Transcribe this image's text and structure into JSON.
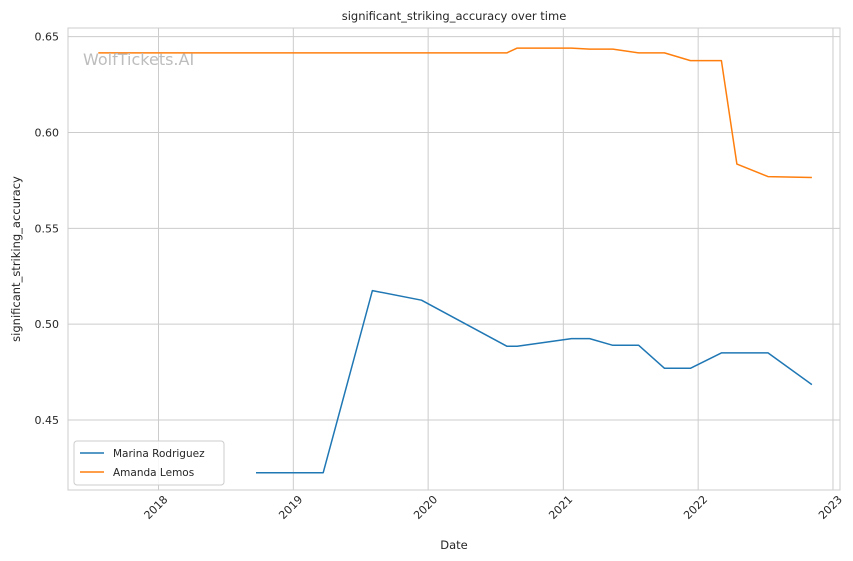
{
  "chart_data": {
    "type": "line",
    "title": "significant_striking_accuracy over time",
    "xlabel": "Date",
    "ylabel": "significant_striking_accuracy",
    "watermark": "WolfTickets.AI",
    "xlim": [
      "2017-05-01",
      "2023-01-20"
    ],
    "ylim": [
      0.4135,
      0.6545
    ],
    "x_ticks": [
      "2018",
      "2019",
      "2020",
      "2021",
      "2022",
      "2023"
    ],
    "y_ticks": [
      "0.45",
      "0.50",
      "0.55",
      "0.60",
      "0.65"
    ],
    "grid": true,
    "legend_position": "lower-left",
    "series": [
      {
        "name": "Marina Rodriguez",
        "color": "#1f77b4",
        "x": [
          "2018-09-22",
          "2019-03-23",
          "2019-08-03",
          "2019-12-14",
          "2020-08-01",
          "2020-08-29",
          "2021-01-23",
          "2021-03-13",
          "2021-05-15",
          "2021-07-24",
          "2021-10-02",
          "2021-12-11",
          "2022-03-05",
          "2022-07-09",
          "2022-11-05"
        ],
        "y": [
          0.4225,
          0.4225,
          0.5175,
          0.5125,
          0.4885,
          0.4885,
          0.4925,
          0.4925,
          0.489,
          0.489,
          0.477,
          0.477,
          0.485,
          0.485,
          0.4685
        ]
      },
      {
        "name": "Amanda Lemos",
        "color": "#ff7f0e",
        "x": [
          "2017-07-22",
          "2020-08-01",
          "2020-08-29",
          "2021-01-23",
          "2021-03-13",
          "2021-05-15",
          "2021-07-24",
          "2021-10-02",
          "2021-12-11",
          "2022-03-05",
          "2022-04-16",
          "2022-07-09",
          "2022-11-05"
        ],
        "y": [
          0.6415,
          0.6415,
          0.644,
          0.644,
          0.6435,
          0.6435,
          0.6415,
          0.6415,
          0.6375,
          0.6375,
          0.5835,
          0.577,
          0.5765
        ]
      }
    ]
  }
}
